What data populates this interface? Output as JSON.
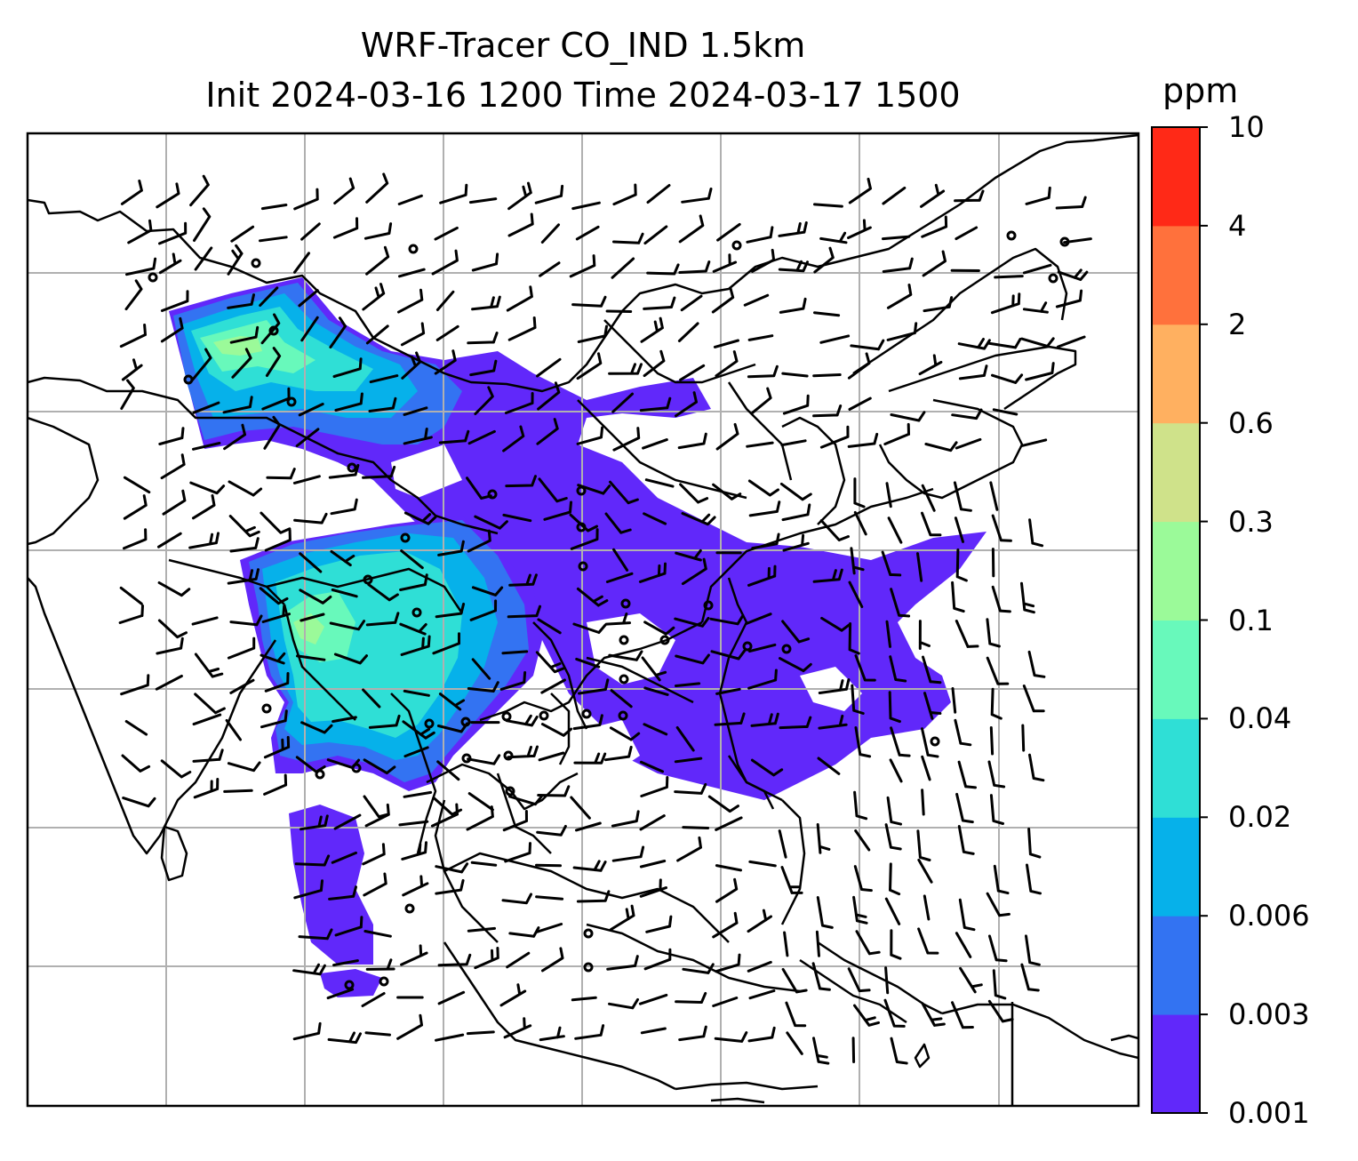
{
  "title": {
    "line1": "WRF-Tracer CO_IND 1.5km",
    "line2": "Init 2024-03-16 1200 Time 2024-03-17 1500"
  },
  "colorbar": {
    "unit": "ppm",
    "levels": [
      "0.001",
      "0.003",
      "0.006",
      "0.02",
      "0.04",
      "0.1",
      "0.3",
      "0.6",
      "2",
      "4",
      "10"
    ],
    "colors": [
      "#6128fa",
      "#3373f2",
      "#06b1ea",
      "#2fdfd6",
      "#68f9bb",
      "#9bfa99",
      "#cfe28a",
      "#ffb060",
      "#ff713c",
      "#ff2917"
    ]
  },
  "map": {
    "land_outline_color": "#000000",
    "gridline_color": "#b0b0b0",
    "wind_barb_color": "#000000"
  }
}
